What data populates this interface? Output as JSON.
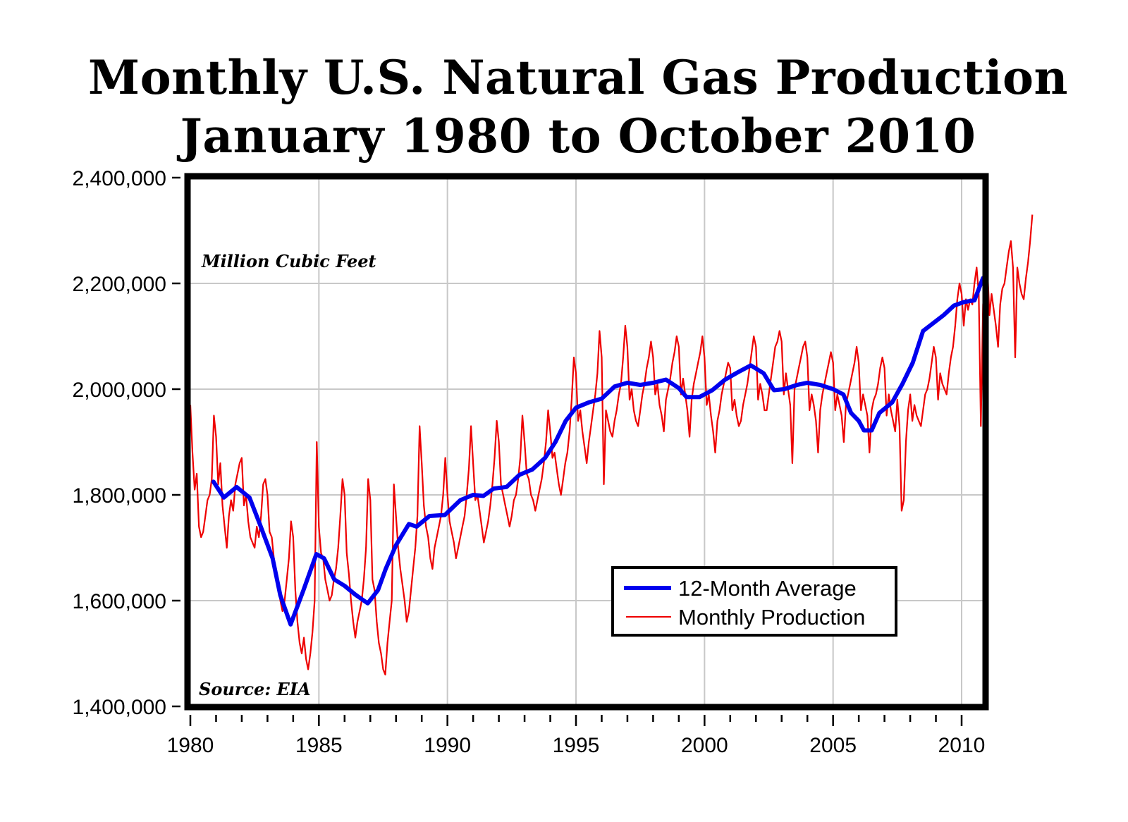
{
  "chart_data": {
    "type": "line",
    "title": "Monthly U.S. Natural Gas Production",
    "subtitle": "January 1980 to October 2010",
    "xlabel": "",
    "ylabel": "",
    "unit_annotation": "Million Cubic Feet",
    "source_annotation": "Source: EIA",
    "ylim": [
      1400000,
      2400000
    ],
    "xlim": [
      1980,
      2010.83
    ],
    "grid": true,
    "legend_position": "bottom-right",
    "y_ticks": [
      1400000,
      1600000,
      1800000,
      2000000,
      2200000,
      2400000
    ],
    "y_tick_labels": [
      "1,400,000",
      "1,600,000",
      "1,800,000",
      "2,000,000",
      "2,200,000",
      "2,400,000"
    ],
    "x_major_ticks": [
      1980,
      1985,
      1990,
      1995,
      2000,
      2005,
      2010
    ],
    "x_tick_labels": [
      "1980",
      "1985",
      "1990",
      "1995",
      "2000",
      "2005",
      "2010"
    ],
    "x_minor_ticks": [
      1981,
      1982,
      1983,
      1984,
      1986,
      1987,
      1988,
      1989,
      1991,
      1992,
      1993,
      1994,
      1996,
      1997,
      1998,
      1999,
      2001,
      2002,
      2003,
      2004,
      2006,
      2007,
      2008,
      2009
    ],
    "colors": {
      "average": "#0000ee",
      "monthly": "#ee0000",
      "frame": "#000000",
      "grid": "#c8c8c8"
    },
    "series": [
      {
        "name": "12-Month Average",
        "color": "#0000ee",
        "x": [
          1980.9,
          1981.3,
          1981.8,
          1982.3,
          1982.7,
          1983.2,
          1983.5,
          1983.9,
          1984.4,
          1984.9,
          1985.2,
          1985.6,
          1986.0,
          1986.4,
          1986.9,
          1987.3,
          1987.6,
          1988.0,
          1988.5,
          1988.8,
          1989.3,
          1989.9,
          1990.5,
          1991.0,
          1991.4,
          1991.8,
          1992.3,
          1992.8,
          1993.3,
          1993.8,
          1994.2,
          1994.6,
          1995.0,
          1995.5,
          1996.0,
          1996.5,
          1997.0,
          1997.5,
          1998.0,
          1998.5,
          1999.0,
          1999.3,
          1999.8,
          2000.3,
          2000.8,
          2001.3,
          2001.8,
          2002.3,
          2002.7,
          2003.1,
          2003.6,
          2004.0,
          2004.5,
          2005.0,
          2005.4,
          2005.7,
          2006.0,
          2006.2,
          2006.5,
          2006.8,
          2007.3,
          2007.7,
          2008.1,
          2008.5,
          2008.9,
          2009.3,
          2009.7,
          2010.1,
          2010.5,
          2010.83
        ],
        "values": [
          1825000,
          1795000,
          1815000,
          1795000,
          1745000,
          1680000,
          1610000,
          1555000,
          1620000,
          1688000,
          1680000,
          1640000,
          1628000,
          1612000,
          1595000,
          1620000,
          1660000,
          1705000,
          1745000,
          1740000,
          1760000,
          1762000,
          1790000,
          1800000,
          1798000,
          1812000,
          1815000,
          1838000,
          1848000,
          1870000,
          1900000,
          1940000,
          1965000,
          1975000,
          1982000,
          2005000,
          2012000,
          2008000,
          2012000,
          2018000,
          2002000,
          1985000,
          1985000,
          1998000,
          2018000,
          2032000,
          2045000,
          2030000,
          1998000,
          2000000,
          2008000,
          2012000,
          2008000,
          2000000,
          1990000,
          1955000,
          1940000,
          1922000,
          1922000,
          1955000,
          1975000,
          2010000,
          2050000,
          2110000,
          2125000,
          2140000,
          2158000,
          2165000,
          2168000,
          2210000
        ]
      },
      {
        "name": "Monthly Production",
        "color": "#ee0000",
        "start": "1980-01",
        "end": "2010-10",
        "values": [
          1970000,
          1880000,
          1810000,
          1840000,
          1740000,
          1720000,
          1730000,
          1760000,
          1790000,
          1800000,
          1830000,
          1950000,
          1910000,
          1820000,
          1860000,
          1780000,
          1740000,
          1700000,
          1760000,
          1790000,
          1770000,
          1820000,
          1840000,
          1860000,
          1870000,
          1780000,
          1800000,
          1750000,
          1720000,
          1710000,
          1700000,
          1740000,
          1720000,
          1760000,
          1820000,
          1830000,
          1800000,
          1730000,
          1720000,
          1680000,
          1650000,
          1630000,
          1600000,
          1580000,
          1600000,
          1640000,
          1680000,
          1750000,
          1720000,
          1620000,
          1560000,
          1520000,
          1500000,
          1530000,
          1490000,
          1470000,
          1500000,
          1540000,
          1600000,
          1900000,
          1740000,
          1690000,
          1680000,
          1640000,
          1620000,
          1600000,
          1610000,
          1640000,
          1660000,
          1700000,
          1760000,
          1830000,
          1800000,
          1690000,
          1650000,
          1600000,
          1560000,
          1530000,
          1560000,
          1580000,
          1600000,
          1640000,
          1700000,
          1830000,
          1790000,
          1640000,
          1620000,
          1560000,
          1520000,
          1500000,
          1470000,
          1460000,
          1520000,
          1560000,
          1600000,
          1820000,
          1760000,
          1700000,
          1660000,
          1630000,
          1600000,
          1560000,
          1580000,
          1620000,
          1660000,
          1700000,
          1760000,
          1930000,
          1860000,
          1780000,
          1740000,
          1720000,
          1680000,
          1660000,
          1700000,
          1720000,
          1740000,
          1760000,
          1800000,
          1870000,
          1800000,
          1750000,
          1730000,
          1710000,
          1680000,
          1700000,
          1720000,
          1740000,
          1760000,
          1800000,
          1850000,
          1930000,
          1860000,
          1790000,
          1800000,
          1770000,
          1740000,
          1710000,
          1730000,
          1750000,
          1780000,
          1820000,
          1870000,
          1940000,
          1900000,
          1820000,
          1800000,
          1780000,
          1760000,
          1740000,
          1760000,
          1790000,
          1800000,
          1830000,
          1870000,
          1950000,
          1900000,
          1840000,
          1830000,
          1800000,
          1790000,
          1770000,
          1790000,
          1810000,
          1830000,
          1860000,
          1900000,
          1960000,
          1920000,
          1870000,
          1880000,
          1850000,
          1820000,
          1800000,
          1830000,
          1860000,
          1880000,
          1920000,
          1980000,
          2060000,
          2030000,
          1940000,
          1960000,
          1920000,
          1890000,
          1860000,
          1900000,
          1930000,
          1960000,
          1990000,
          2030000,
          2110000,
          2060000,
          1820000,
          1960000,
          1940000,
          1920000,
          1910000,
          1940000,
          1960000,
          1990000,
          2010000,
          2060000,
          2120000,
          2080000,
          1980000,
          2000000,
          1960000,
          1940000,
          1930000,
          1960000,
          1990000,
          2010000,
          2040000,
          2060000,
          2090000,
          2060000,
          1990000,
          2010000,
          1970000,
          1950000,
          1920000,
          1980000,
          2000000,
          2020000,
          2050000,
          2070000,
          2100000,
          2080000,
          1990000,
          2020000,
          1990000,
          1960000,
          1910000,
          1980000,
          2010000,
          2030000,
          2050000,
          2070000,
          2100000,
          2060000,
          1970000,
          1990000,
          1950000,
          1920000,
          1880000,
          1940000,
          1960000,
          1990000,
          2010000,
          2030000,
          2050000,
          2040000,
          1960000,
          1980000,
          1950000,
          1930000,
          1940000,
          1970000,
          1990000,
          2010000,
          2040000,
          2070000,
          2100000,
          2080000,
          1980000,
          2010000,
          1990000,
          1960000,
          1960000,
          1990000,
          2020000,
          2050000,
          2080000,
          2090000,
          2110000,
          2090000,
          1990000,
          2030000,
          2000000,
          1970000,
          1860000,
          2000000,
          2020000,
          2040000,
          2060000,
          2080000,
          2090000,
          2060000,
          1960000,
          1990000,
          1970000,
          1940000,
          1880000,
          1960000,
          1990000,
          2010000,
          2030000,
          2050000,
          2070000,
          2050000,
          1960000,
          1990000,
          1970000,
          1950000,
          1900000,
          1970000,
          1990000,
          2010000,
          2030000,
          2050000,
          2080000,
          2050000,
          1960000,
          1990000,
          1970000,
          1950000,
          1880000,
          1960000,
          1980000,
          1990000,
          2010000,
          2040000,
          2060000,
          2040000,
          1950000,
          1990000,
          1960000,
          1940000,
          1920000,
          1980000,
          1930000,
          1770000,
          1790000,
          1900000,
          1960000,
          1990000,
          1940000,
          1970000,
          1950000,
          1940000,
          1930000,
          1960000,
          1990000,
          2000000,
          2020000,
          2050000,
          2080000,
          2060000,
          1980000,
          2030000,
          2010000,
          2000000,
          1990000,
          2030000,
          2060000,
          2080000,
          2120000,
          2170000,
          2200000,
          2180000,
          2120000,
          2170000,
          2150000,
          2170000,
          2160000,
          2200000,
          2230000,
          2180000,
          1930000,
          2160000,
          2200000,
          2230000,
          2140000,
          2180000,
          2150000,
          2120000,
          2080000,
          2160000,
          2190000,
          2200000,
          2230000,
          2260000,
          2280000,
          2230000,
          2060000,
          2230000,
          2200000,
          2180000,
          2170000,
          2210000,
          2240000,
          2280000,
          2330000
        ]
      }
    ]
  },
  "legend": {
    "items": [
      {
        "label": "12-Month Average",
        "color": "#0000ee"
      },
      {
        "label": "Monthly Production",
        "color": "#ee0000"
      }
    ]
  }
}
